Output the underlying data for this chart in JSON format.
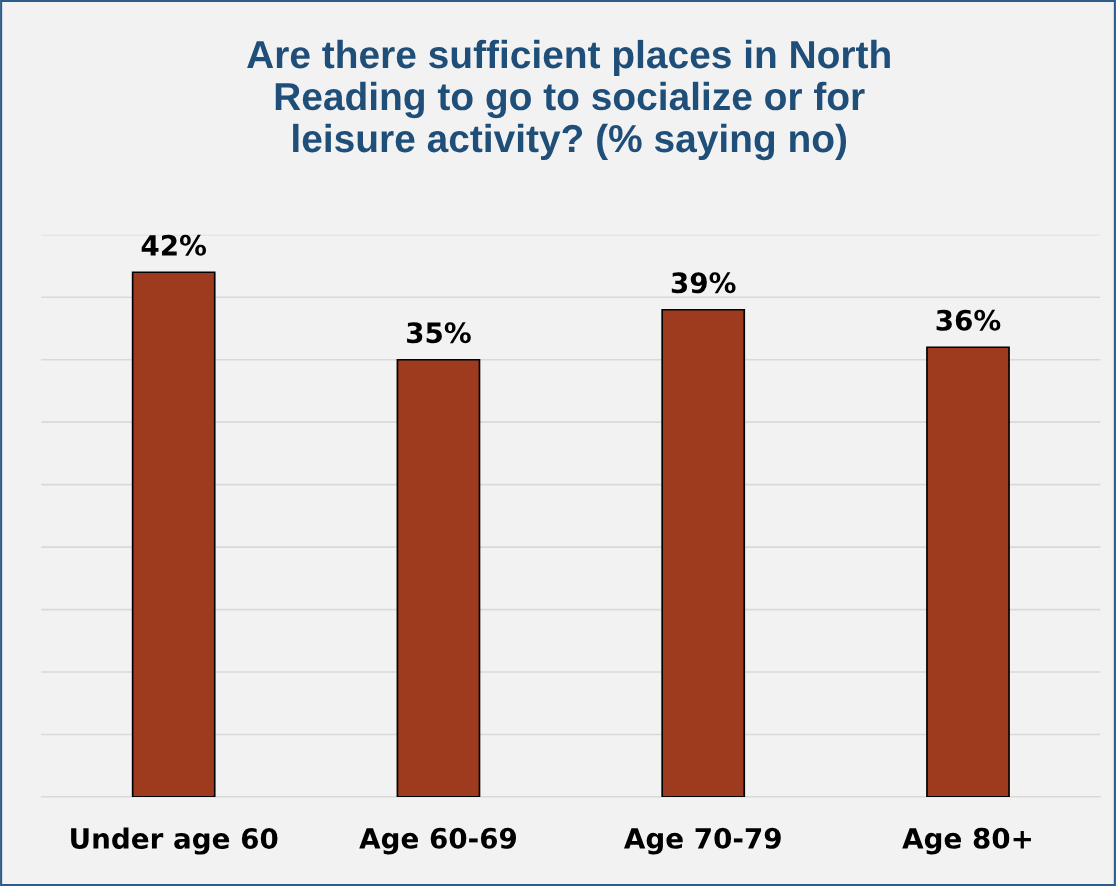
{
  "chart_data": {
    "type": "bar",
    "title": "Are there sufficient places in North\nReading to go to socialize or for\nleisure activity? (% saying no)",
    "categories": [
      "Under age 60",
      "Age 60-69",
      "Age 70-79",
      "Age 80+"
    ],
    "values": [
      42,
      35,
      39,
      36
    ],
    "value_labels": [
      "42%",
      "35%",
      "39%",
      "36%"
    ],
    "color": "#9e3b1e",
    "ylim": [
      0,
      45
    ],
    "yticks": [
      {
        "value": 0,
        "label": null
      },
      {
        "value": 5,
        "label": null
      },
      {
        "value": 10,
        "label": null
      },
      {
        "value": 15,
        "label": null
      },
      {
        "value": 20,
        "label": null
      },
      {
        "value": 25,
        "label": null
      },
      {
        "value": 30,
        "label": null
      },
      {
        "value": 35,
        "label": null
      },
      {
        "value": 40,
        "label": null
      },
      {
        "value": 45,
        "label": null
      }
    ],
    "grid": "y",
    "tick_labels": "x",
    "legend": false
  }
}
